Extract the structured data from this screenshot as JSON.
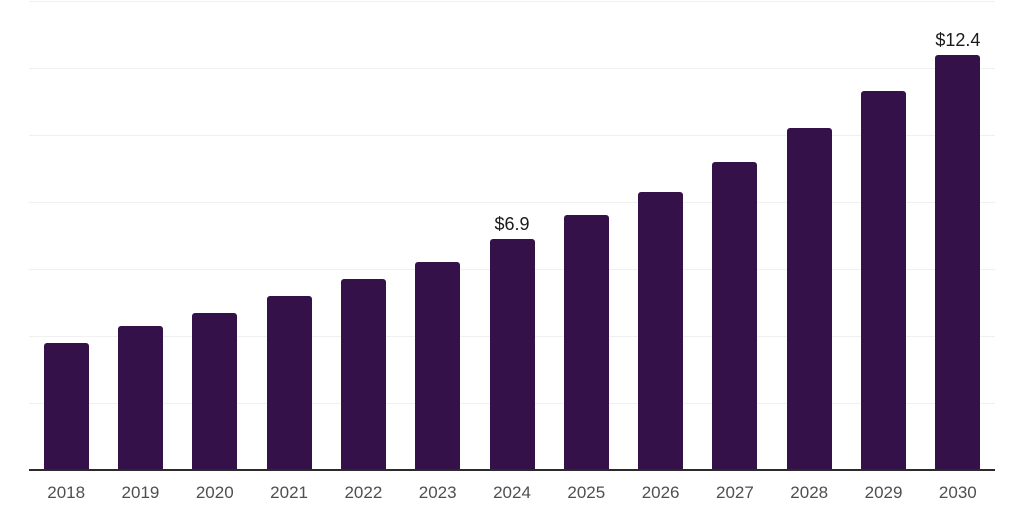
{
  "chart_data": {
    "type": "bar",
    "title": "",
    "xlabel": "",
    "ylabel": "",
    "categories": [
      "2018",
      "2019",
      "2020",
      "2021",
      "2022",
      "2023",
      "2024",
      "2025",
      "2026",
      "2027",
      "2028",
      "2029",
      "2030"
    ],
    "values": [
      3.8,
      4.3,
      4.7,
      5.2,
      5.7,
      6.2,
      6.9,
      7.6,
      8.3,
      9.2,
      10.2,
      11.3,
      12.4
    ],
    "data_labels": [
      "",
      "",
      "",
      "",
      "",
      "",
      "$6.9",
      "",
      "",
      "",
      "",
      "",
      "$12.4"
    ],
    "ylim": [
      0,
      14
    ],
    "gridline_step": 2,
    "grid": true,
    "legend": false,
    "y_axis_labels_visible": false,
    "colors": {
      "bar": "#341249",
      "gridline": "#f0f0f0",
      "axis_line": "#2b2b2b",
      "tick_label": "#4f4f4f",
      "data_label": "#1a1a1a",
      "background": "#ffffff"
    }
  }
}
